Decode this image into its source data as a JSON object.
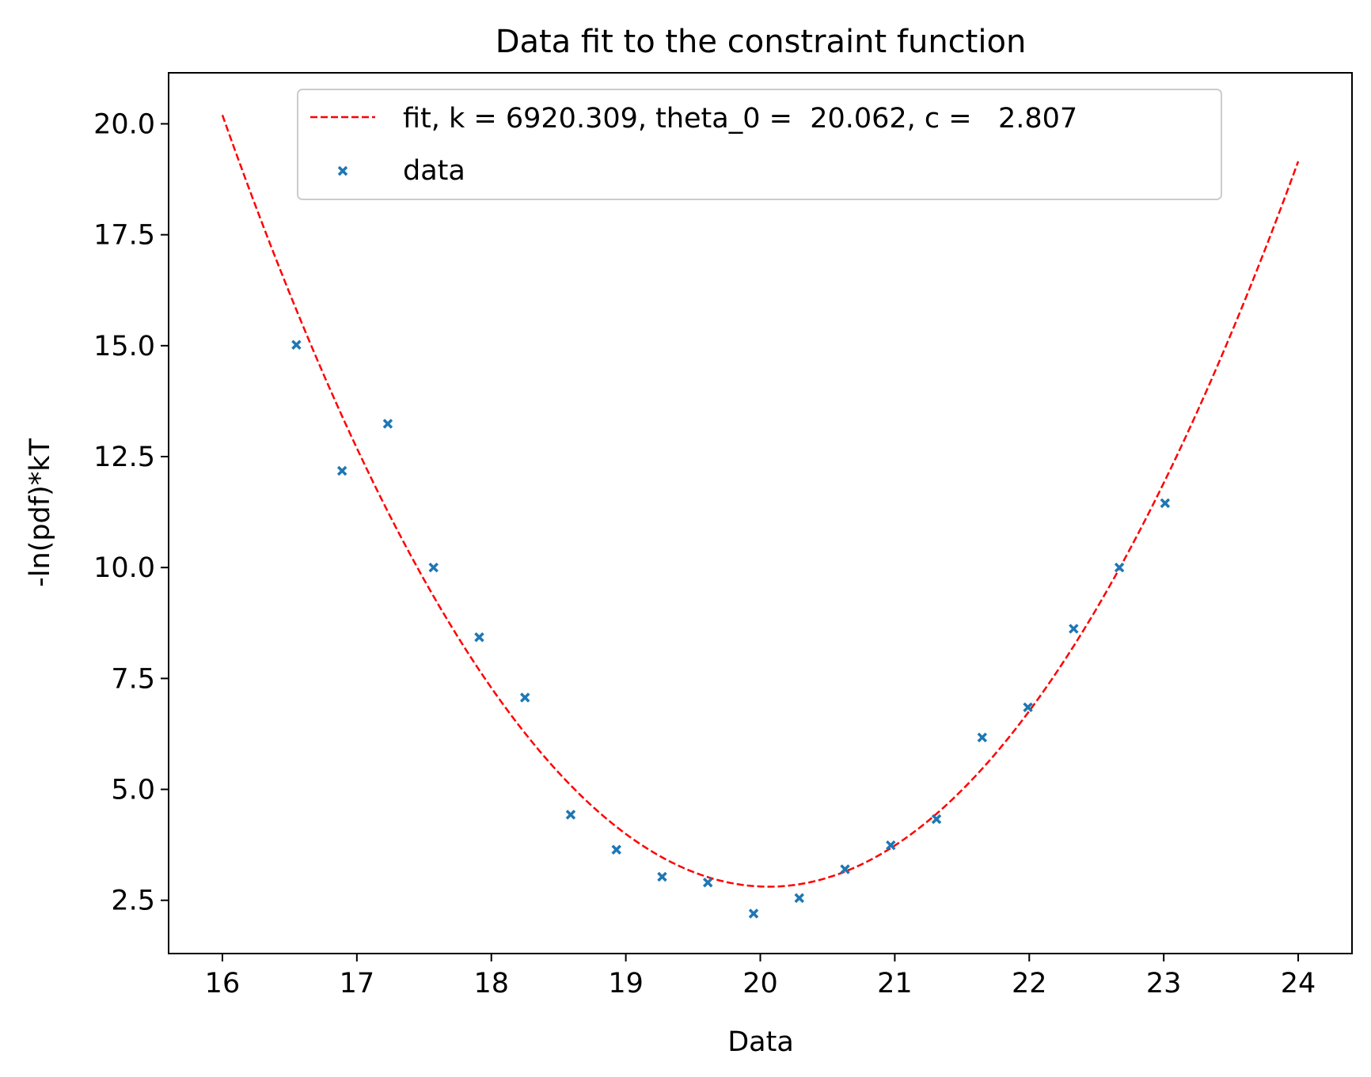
{
  "chart_data": {
    "type": "scatter",
    "title": "Data fit to the constraint function",
    "xlabel": "Data",
    "ylabel": "-ln(pdf)*kT",
    "xlim": [
      15.6,
      24.4
    ],
    "ylim": [
      1.3,
      21.15
    ],
    "xticks": [
      16,
      17,
      18,
      19,
      20,
      21,
      22,
      23,
      24
    ],
    "xtick_labels": [
      "16",
      "17",
      "18",
      "19",
      "20",
      "21",
      "22",
      "23",
      "24"
    ],
    "yticks": [
      2.5,
      5.0,
      7.5,
      10.0,
      12.5,
      15.0,
      17.5,
      20.0
    ],
    "ytick_labels": [
      "2.5",
      "5.0",
      "7.5",
      "10.0",
      "12.5",
      "15.0",
      "17.5",
      "20.0"
    ],
    "grid": false,
    "legend_position": "upper center",
    "series": [
      {
        "name": "fit, k = 6920.309, theta_0 =  20.062, c =   2.807",
        "kind": "line",
        "style": "dashed",
        "color": "#ff0000",
        "function": "c + 0.5*k*((x - theta_0)*pi/180)^2",
        "params": {
          "k": 6920.309,
          "theta_0": 20.062,
          "c": 2.807
        },
        "x_range": [
          16,
          24
        ]
      },
      {
        "name": "data",
        "kind": "scatter",
        "marker": "x",
        "color": "#1f77b4",
        "x": [
          16.55,
          16.89,
          17.23,
          17.57,
          17.91,
          18.25,
          18.59,
          18.93,
          19.27,
          19.61,
          19.95,
          20.29,
          20.63,
          20.97,
          21.31,
          21.65,
          21.99,
          22.33,
          22.67,
          23.01
        ],
        "y": [
          15.02,
          12.18,
          13.24,
          10.0,
          8.43,
          7.07,
          4.43,
          3.64,
          3.03,
          2.9,
          2.2,
          2.55,
          3.2,
          3.74,
          4.33,
          6.17,
          6.85,
          8.62,
          10.0,
          11.45
        ]
      }
    ]
  }
}
